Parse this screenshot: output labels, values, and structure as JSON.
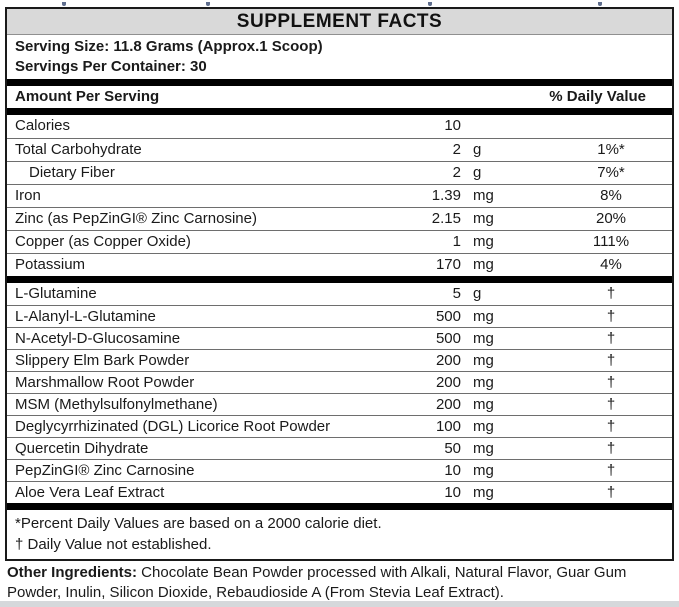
{
  "header": {
    "title": "SUPPLEMENT FACTS"
  },
  "serving": {
    "serving_size": "Serving Size: 11.8 Grams (Approx.1 Scoop)",
    "servings_per_container": "Servings Per Container: 30"
  },
  "table_headers": {
    "amount": "Amount Per Serving",
    "daily_value": "% Daily Value"
  },
  "rows": [
    {
      "name": "Calories",
      "amount": "10",
      "unit": "",
      "dv": "",
      "indent": false,
      "section": 1
    },
    {
      "name": "Total Carbohydrate",
      "amount": "2",
      "unit": "g",
      "dv": "1%*",
      "indent": false,
      "section": 1
    },
    {
      "name": "Dietary Fiber",
      "amount": "2",
      "unit": "g",
      "dv": "7%*",
      "indent": true,
      "section": 1
    },
    {
      "name": "Iron",
      "amount": "1.39",
      "unit": "mg",
      "dv": "8%",
      "indent": false,
      "section": 1
    },
    {
      "name": "Zinc (as PepZinGI® Zinc Carnosine)",
      "amount": "2.15",
      "unit": "mg",
      "dv": "20%",
      "indent": false,
      "section": 1
    },
    {
      "name": "Copper (as Copper Oxide)",
      "amount": "1",
      "unit": "mg",
      "dv": "111%",
      "indent": false,
      "section": 1
    },
    {
      "name": "Potassium",
      "amount": "170",
      "unit": "mg",
      "dv": "4%",
      "indent": false,
      "section": 1
    },
    {
      "name": "L-Glutamine",
      "amount": "5",
      "unit": "g",
      "dv": "†",
      "indent": false,
      "section": 2
    },
    {
      "name": "L-Alanyl-L-Glutamine",
      "amount": "500",
      "unit": "mg",
      "dv": "†",
      "indent": false,
      "section": 2
    },
    {
      "name": "N-Acetyl-D-Glucosamine",
      "amount": "500",
      "unit": "mg",
      "dv": "†",
      "indent": false,
      "section": 2
    },
    {
      "name": "Slippery Elm Bark Powder",
      "amount": "200",
      "unit": "mg",
      "dv": "†",
      "indent": false,
      "section": 2
    },
    {
      "name": "Marshmallow Root Powder",
      "amount": "200",
      "unit": "mg",
      "dv": "†",
      "indent": false,
      "section": 2
    },
    {
      "name": "MSM (Methylsulfonylmethane)",
      "amount": "200",
      "unit": "mg",
      "dv": "†",
      "indent": false,
      "section": 2
    },
    {
      "name": "Deglycyrrhizinated (DGL) Licorice Root Powder",
      "amount": "100",
      "unit": "mg",
      "dv": "†",
      "indent": false,
      "section": 2
    },
    {
      "name": "Quercetin Dihydrate",
      "amount": "50",
      "unit": "mg",
      "dv": "†",
      "indent": false,
      "section": 2
    },
    {
      "name": "PepZinGI® Zinc Carnosine",
      "amount": "10",
      "unit": "mg",
      "dv": "†",
      "indent": false,
      "section": 2
    },
    {
      "name": "Aloe Vera Leaf Extract",
      "amount": "10",
      "unit": "mg",
      "dv": "†",
      "indent": false,
      "section": 2
    }
  ],
  "footnotes": {
    "percent_note": "*Percent Daily Values are based on a 2000 calorie diet.",
    "dagger_note": "† Daily Value not established."
  },
  "other_ingredients": {
    "label": "Other Ingredients:",
    "text": " Chocolate Bean Powder processed with Alkali, Natural Flavor, Guar Gum Powder, Inulin, Silicon Dioxide, Rebaudioside A (From Stevia Leaf Extract)."
  },
  "colors": {
    "title_band": "#d9d9d9",
    "section_bar": "#000000",
    "border": "#1a1a1a",
    "row_separator": "#6e6e6e",
    "bottom_strip": "#d5d8db"
  }
}
